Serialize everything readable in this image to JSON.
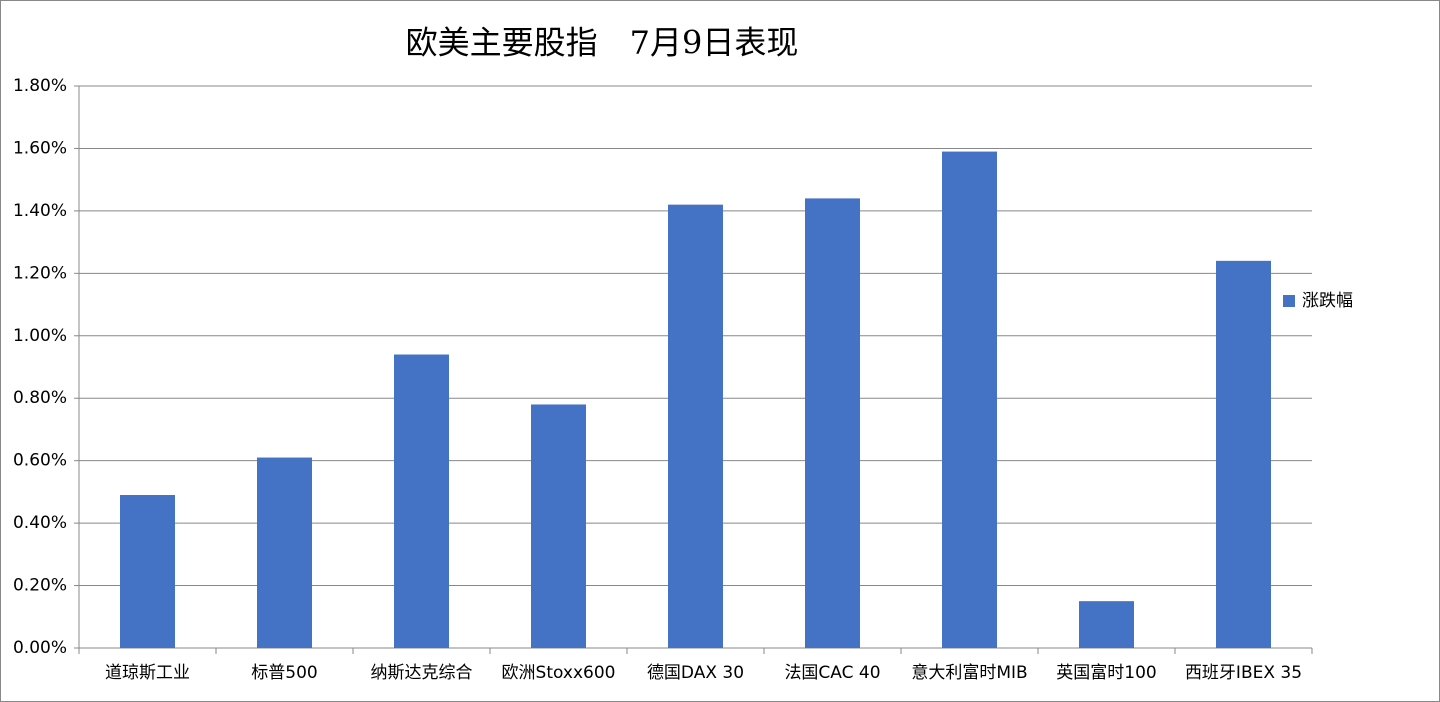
{
  "chart_data": {
    "type": "bar",
    "title": "欧美主要股指　7月9日表现",
    "categories": [
      "道琼斯工业",
      "标普500",
      "纳斯达克综合",
      "欧洲Stoxx600",
      "德国DAX 30",
      "法国CAC 40",
      "意大利富时MIB",
      "英国富时100",
      "西班牙IBEX 35"
    ],
    "series": [
      {
        "name": "涨跌幅",
        "color": "#4472c4",
        "values": [
          0.49,
          0.61,
          0.94,
          0.78,
          1.42,
          1.44,
          1.59,
          0.15,
          1.24
        ]
      }
    ],
    "ylim": [
      0,
      1.8
    ],
    "yticks": [
      {
        "value": 0,
        "label": "0.00%"
      },
      {
        "value": 0.2,
        "label": "0.20%"
      },
      {
        "value": 0.4,
        "label": "0.40%"
      },
      {
        "value": 0.6,
        "label": "0.60%"
      },
      {
        "value": 0.8,
        "label": "0.80%"
      },
      {
        "value": 1.0,
        "label": "1.00%"
      },
      {
        "value": 1.2,
        "label": "1.20%"
      },
      {
        "value": 1.4,
        "label": "1.40%"
      },
      {
        "value": 1.6,
        "label": "1.60%"
      },
      {
        "value": 1.8,
        "label": "1.80%"
      }
    ],
    "grid": true,
    "legend": "right"
  }
}
